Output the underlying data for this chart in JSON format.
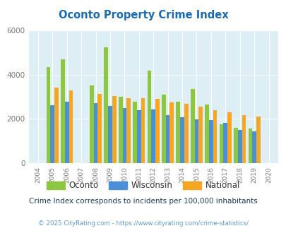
{
  "title": "Oconto Property Crime Index",
  "years": [
    "2004",
    "2005",
    "2006",
    "2007",
    "2008",
    "2009",
    "2010",
    "2011",
    "2012",
    "2013",
    "2014",
    "2015",
    "2016",
    "2017",
    "2018",
    "2019",
    "2020"
  ],
  "oconto": [
    0,
    4350,
    4680,
    0,
    3520,
    5220,
    3000,
    2780,
    4170,
    3100,
    2780,
    3360,
    2650,
    1750,
    1580,
    1570,
    0
  ],
  "wisconsin": [
    0,
    2630,
    2780,
    0,
    2720,
    2590,
    2490,
    2400,
    2440,
    2180,
    2070,
    1990,
    1960,
    1830,
    1510,
    1440,
    0
  ],
  "national": [
    0,
    3400,
    3280,
    0,
    3130,
    3030,
    2940,
    2940,
    2890,
    2730,
    2670,
    2540,
    2390,
    2300,
    2180,
    2100,
    0
  ],
  "bar_width": 0.28,
  "ylim": [
    0,
    6000
  ],
  "yticks": [
    0,
    2000,
    4000,
    6000
  ],
  "oconto_color": "#8dc63f",
  "wisconsin_color": "#4a90d9",
  "national_color": "#f5a623",
  "bg_color": "#ddeef5",
  "title_color": "#1a6bb5",
  "subtitle": "Crime Index corresponds to incidents per 100,000 inhabitants",
  "footer": "© 2025 CityRating.com - https://www.cityrating.com/crime-statistics/",
  "subtitle_color": "#1a3a5c",
  "footer_color": "#5b9bd5",
  "grid_color": "#ffffff"
}
